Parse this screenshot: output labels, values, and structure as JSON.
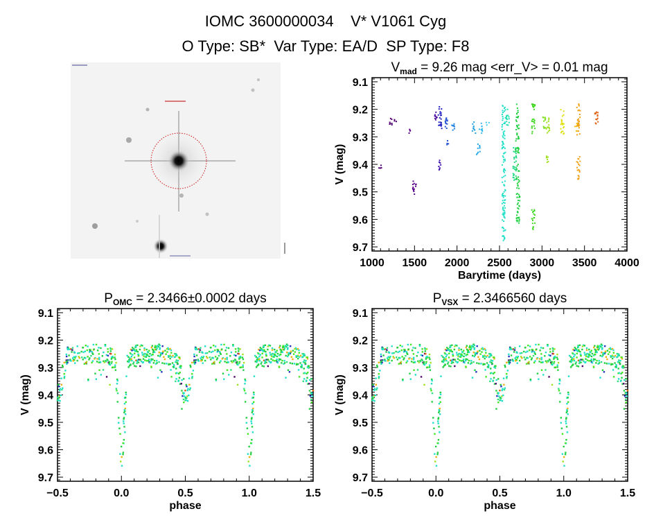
{
  "header": {
    "line1": "IOMC 3600000034    V* V1061 Cyg",
    "line2": "O Type: SB*  Var Type: EA/D  SP Type: F8"
  },
  "chart_data": [
    {
      "type": "image",
      "description_label": "",
      "target_marker_color": "#d01010"
    },
    {
      "type": "scatter",
      "title_main": "V",
      "title_sub": "mad",
      "title_rest": " = 9.26 mag <err_V> = 0.01 mag",
      "xlabel": "Barytime (days)",
      "ylabel": "V (mag)",
      "xlim": [
        1000,
        4000
      ],
      "ylim": [
        9.085,
        9.715
      ],
      "y_inverted": true,
      "xticks": [
        "1000",
        "1500",
        "2000",
        "2500",
        "3000",
        "3500",
        "4000"
      ],
      "xtick_values": [
        1000,
        1500,
        2000,
        2500,
        3000,
        3500,
        4000
      ],
      "yticks": [
        "9.1",
        "9.2",
        "9.3",
        "9.4",
        "9.5",
        "9.6",
        "9.7"
      ],
      "ytick_values": [
        9.1,
        9.2,
        9.3,
        9.4,
        9.5,
        9.6,
        9.7
      ],
      "grid": false,
      "clusters": [
        {
          "x": 1090,
          "v": [
            9.4,
            9.42
          ],
          "color": "#500070"
        },
        {
          "x": 1220,
          "v": [
            9.23,
            9.26
          ],
          "color": "#500070"
        },
        {
          "x": 1270,
          "v": [
            9.235,
            9.245
          ],
          "color": "#500070"
        },
        {
          "x": 1450,
          "v": [
            9.27,
            9.29
          ],
          "color": "#580088"
        },
        {
          "x": 1500,
          "v": [
            9.445,
            9.51
          ],
          "color": "#580088"
        },
        {
          "x": 1750,
          "v": [
            9.21,
            9.245
          ],
          "color": "#5010a0"
        },
        {
          "x": 1790,
          "v": [
            9.385,
            9.42
          ],
          "color": "#4010b0"
        },
        {
          "x": 1800,
          "v": [
            9.19,
            9.29
          ],
          "color": "#2020c0"
        },
        {
          "x": 1870,
          "v": [
            9.235,
            9.27
          ],
          "color": "#2050d0"
        },
        {
          "x": 1890,
          "v": [
            9.23,
            9.25
          ],
          "color": "#2050d0"
        },
        {
          "x": 1890,
          "v": [
            9.31,
            9.33
          ],
          "color": "#2050d0"
        },
        {
          "x": 1950,
          "v": [
            9.25,
            9.285
          ],
          "color": "#2080e0"
        },
        {
          "x": 2200,
          "v": [
            9.24,
            9.29
          ],
          "color": "#20a0e0"
        },
        {
          "x": 2250,
          "v": [
            9.325,
            9.365
          ],
          "color": "#20a8e8"
        },
        {
          "x": 2280,
          "v": [
            9.25,
            9.29
          ],
          "color": "#30b8f0"
        },
        {
          "x": 2360,
          "v": [
            9.245,
            9.26
          ],
          "color": "#40c8f0"
        },
        {
          "x": 2550,
          "v": [
            9.18,
            9.68
          ],
          "color": "#20e0c8"
        },
        {
          "x": 2600,
          "v": [
            9.2,
            9.26
          ],
          "color": "#20e0b0"
        },
        {
          "x": 2680,
          "v": [
            9.33,
            9.47
          ],
          "color": "#20d880"
        },
        {
          "x": 2710,
          "v": [
            9.18,
            9.36
          ],
          "color": "#20d040"
        },
        {
          "x": 2720,
          "v": [
            9.4,
            9.62
          ],
          "color": "#20d040"
        },
        {
          "x": 2900,
          "v": [
            9.18,
            9.3
          ],
          "color": "#40d820"
        },
        {
          "x": 2900,
          "v": [
            9.56,
            9.64
          ],
          "color": "#40d820"
        },
        {
          "x": 3030,
          "v": [
            9.22,
            9.27
          ],
          "color": "#80e020"
        },
        {
          "x": 3070,
          "v": [
            9.23,
            9.29
          ],
          "color": "#a0e020"
        },
        {
          "x": 3070,
          "v": [
            9.37,
            9.4
          ],
          "color": "#a0e020"
        },
        {
          "x": 3240,
          "v": [
            9.2,
            9.29
          ],
          "color": "#e0e010"
        },
        {
          "x": 3400,
          "v": [
            9.25,
            9.28
          ],
          "color": "#f0c010"
        },
        {
          "x": 3430,
          "v": [
            9.18,
            9.3
          ],
          "color": "#f0a010"
        },
        {
          "x": 3430,
          "v": [
            9.37,
            9.46
          ],
          "color": "#f0a010"
        },
        {
          "x": 3640,
          "v": [
            9.21,
            9.27
          ],
          "color": "#e06010"
        }
      ]
    },
    {
      "type": "scatter",
      "title_main": "P",
      "title_sub": "OMC",
      "title_rest": " = 2.3466±0.0002 days",
      "xlabel": "phase",
      "ylabel": "V (mag)",
      "xlim": [
        -0.5,
        1.5
      ],
      "ylim": [
        9.085,
        9.715
      ],
      "y_inverted": true,
      "xticks": [
        "−0.5",
        "0.0",
        "0.5",
        "1.0",
        "1.5"
      ],
      "xtick_values": [
        -0.5,
        0,
        0.5,
        1,
        1.5
      ],
      "yticks": [
        "9.1",
        "9.2",
        "9.3",
        "9.4",
        "9.5",
        "9.6",
        "9.7"
      ],
      "ytick_values": [
        9.1,
        9.2,
        9.3,
        9.4,
        9.5,
        9.6,
        9.7
      ],
      "grid": false,
      "median_curve": [
        [
          0.0,
          9.64
        ],
        [
          0.015,
          9.55
        ],
        [
          0.03,
          9.42
        ],
        [
          0.05,
          9.27
        ],
        [
          0.1,
          9.25
        ],
        [
          0.3,
          9.25
        ],
        [
          0.42,
          9.27
        ],
        [
          0.46,
          9.32
        ],
        [
          0.5,
          9.4
        ],
        [
          0.54,
          9.33
        ],
        [
          0.58,
          9.26
        ],
        [
          0.7,
          9.25
        ],
        [
          0.9,
          9.25
        ],
        [
          0.95,
          9.28
        ],
        [
          0.975,
          9.42
        ],
        [
          0.99,
          9.58
        ],
        [
          1.0,
          9.64
        ]
      ],
      "scatter_mag": 0.035,
      "colors": [
        "#20e0c8",
        "#20d040",
        "#40e820",
        "#30e080",
        "#a0e020",
        "#f0b010",
        "#e06010",
        "#2030c0",
        "#500070"
      ]
    },
    {
      "type": "scatter",
      "title_main": "P",
      "title_sub": "VSX",
      "title_rest": " = 2.3466560 days",
      "xlabel": "phase",
      "ylabel": "V (mag)",
      "xlim": [
        -0.5,
        1.5
      ],
      "ylim": [
        9.085,
        9.715
      ],
      "y_inverted": true,
      "xticks": [
        "−0.5",
        "0.0",
        "0.5",
        "1.0",
        "1.5"
      ],
      "xtick_values": [
        -0.5,
        0,
        0.5,
        1,
        1.5
      ],
      "yticks": [
        "9.1",
        "9.2",
        "9.3",
        "9.4",
        "9.5",
        "9.6",
        "9.7"
      ],
      "ytick_values": [
        9.1,
        9.2,
        9.3,
        9.4,
        9.5,
        9.6,
        9.7
      ],
      "grid": false,
      "median_curve": [
        [
          0.0,
          9.64
        ],
        [
          0.015,
          9.55
        ],
        [
          0.03,
          9.42
        ],
        [
          0.05,
          9.27
        ],
        [
          0.1,
          9.25
        ],
        [
          0.3,
          9.25
        ],
        [
          0.42,
          9.27
        ],
        [
          0.46,
          9.32
        ],
        [
          0.5,
          9.4
        ],
        [
          0.54,
          9.33
        ],
        [
          0.58,
          9.26
        ],
        [
          0.7,
          9.25
        ],
        [
          0.9,
          9.25
        ],
        [
          0.95,
          9.28
        ],
        [
          0.975,
          9.42
        ],
        [
          0.99,
          9.58
        ],
        [
          1.0,
          9.64
        ]
      ],
      "scatter_mag": 0.035,
      "colors": [
        "#20e0c8",
        "#20d040",
        "#40e820",
        "#30e080",
        "#a0e020",
        "#f0b010",
        "#e06010",
        "#2030c0",
        "#500070"
      ]
    }
  ]
}
